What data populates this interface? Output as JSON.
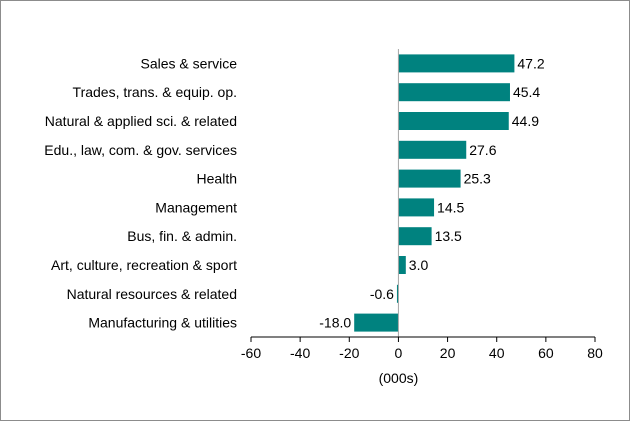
{
  "chart_data": {
    "type": "bar",
    "orientation": "horizontal",
    "categories": [
      "Sales & service",
      "Trades, trans. & equip. op.",
      "Natural & applied sci. & related",
      "Edu., law, com. & gov. services",
      "Health",
      "Management",
      "Bus, fin. & admin.",
      "Art, culture, recreation & sport",
      "Natural resources & related",
      "Manufacturing & utilities"
    ],
    "values": [
      47.2,
      45.4,
      44.9,
      27.6,
      25.3,
      14.5,
      13.5,
      3.0,
      -0.6,
      -18.0
    ],
    "data_labels": [
      "47.2",
      "45.4",
      "44.9",
      "27.6",
      "25.3",
      "14.5",
      "13.5",
      "3.0",
      "-0.6",
      "-18.0"
    ],
    "x_ticks": [
      "-60",
      "-40",
      "-20",
      "0",
      "20",
      "40",
      "60",
      "80"
    ],
    "xlim": [
      -60,
      80
    ],
    "xlabel": "(000s)",
    "grid": false,
    "bar_color": "#00827f"
  }
}
